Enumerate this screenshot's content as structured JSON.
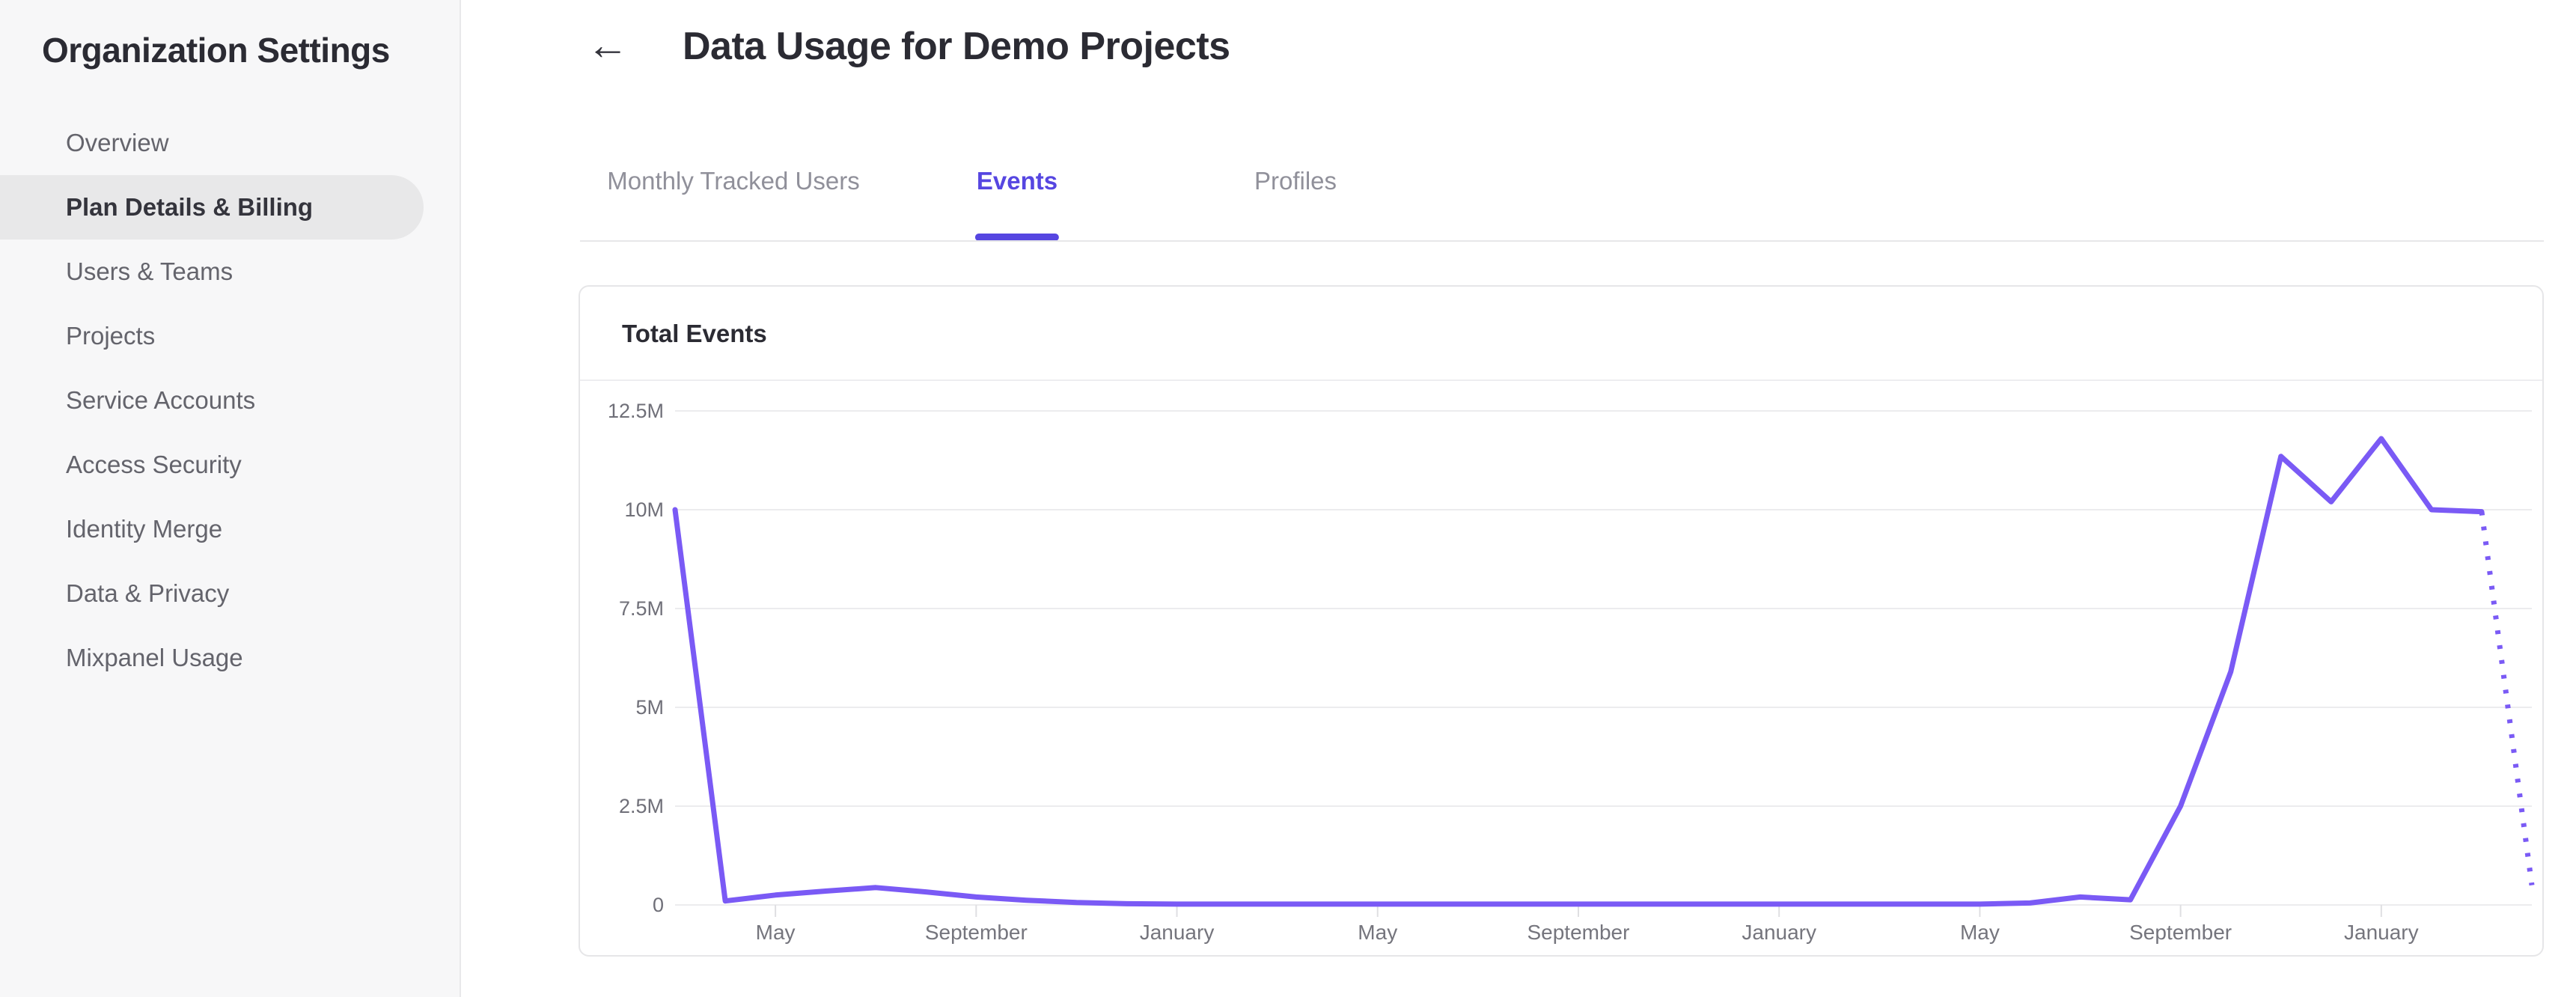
{
  "sidebar": {
    "title": "Organization Settings",
    "items": [
      {
        "label": "Overview",
        "active": false
      },
      {
        "label": "Plan Details & Billing",
        "active": true
      },
      {
        "label": "Users & Teams",
        "active": false
      },
      {
        "label": "Projects",
        "active": false
      },
      {
        "label": "Service Accounts",
        "active": false
      },
      {
        "label": "Access Security",
        "active": false
      },
      {
        "label": "Identity Merge",
        "active": false
      },
      {
        "label": "Data & Privacy",
        "active": false
      },
      {
        "label": "Mixpanel Usage",
        "active": false
      }
    ]
  },
  "header": {
    "back_icon": "←",
    "title": "Data Usage for Demo Projects"
  },
  "tabs": [
    {
      "label": "Monthly Tracked Users",
      "active": false
    },
    {
      "label": "Events",
      "active": true
    },
    {
      "label": "Profiles",
      "active": false
    }
  ],
  "card": {
    "title": "Total Events"
  },
  "colors": {
    "accent_purple": "#5646e1",
    "chart_line_purple": "#7a5af5",
    "grid_gray": "#ececee",
    "axis_label_gray": "#6f6f78"
  },
  "chart_data": {
    "type": "line",
    "title": "Total Events",
    "grid": "horizontal",
    "legend": "none",
    "ylim_millions": [
      0,
      12.5
    ],
    "y_ticks": [
      {
        "label": "12.5M",
        "value": 12.5
      },
      {
        "label": "10M",
        "value": 10
      },
      {
        "label": "7.5M",
        "value": 7.5
      },
      {
        "label": "5M",
        "value": 5
      },
      {
        "label": "2.5M",
        "value": 2.5
      },
      {
        "label": "0",
        "value": 0
      }
    ],
    "x_tick_labels": [
      "May",
      "September",
      "January",
      "May",
      "September",
      "January",
      "May",
      "September",
      "January"
    ],
    "x_tick_indices": [
      2,
      6,
      10,
      14,
      18,
      22,
      26,
      30,
      34
    ],
    "series": [
      {
        "name": "Total Events",
        "unit": "million events per month",
        "values_millions": [
          10,
          0.1,
          0.25,
          0.35,
          0.44,
          0.33,
          0.2,
          0.12,
          0.06,
          0.03,
          0.02,
          0.02,
          0.02,
          0.02,
          0.02,
          0.02,
          0.02,
          0.02,
          0.02,
          0.02,
          0.02,
          0.02,
          0.02,
          0.02,
          0.02,
          0.02,
          0.02,
          0.05,
          0.2,
          0.13,
          2.5,
          5.9,
          11.35,
          10.2,
          11.8,
          10.0,
          9.95,
          0.5
        ],
        "last_segment_style": "dotted"
      }
    ]
  }
}
